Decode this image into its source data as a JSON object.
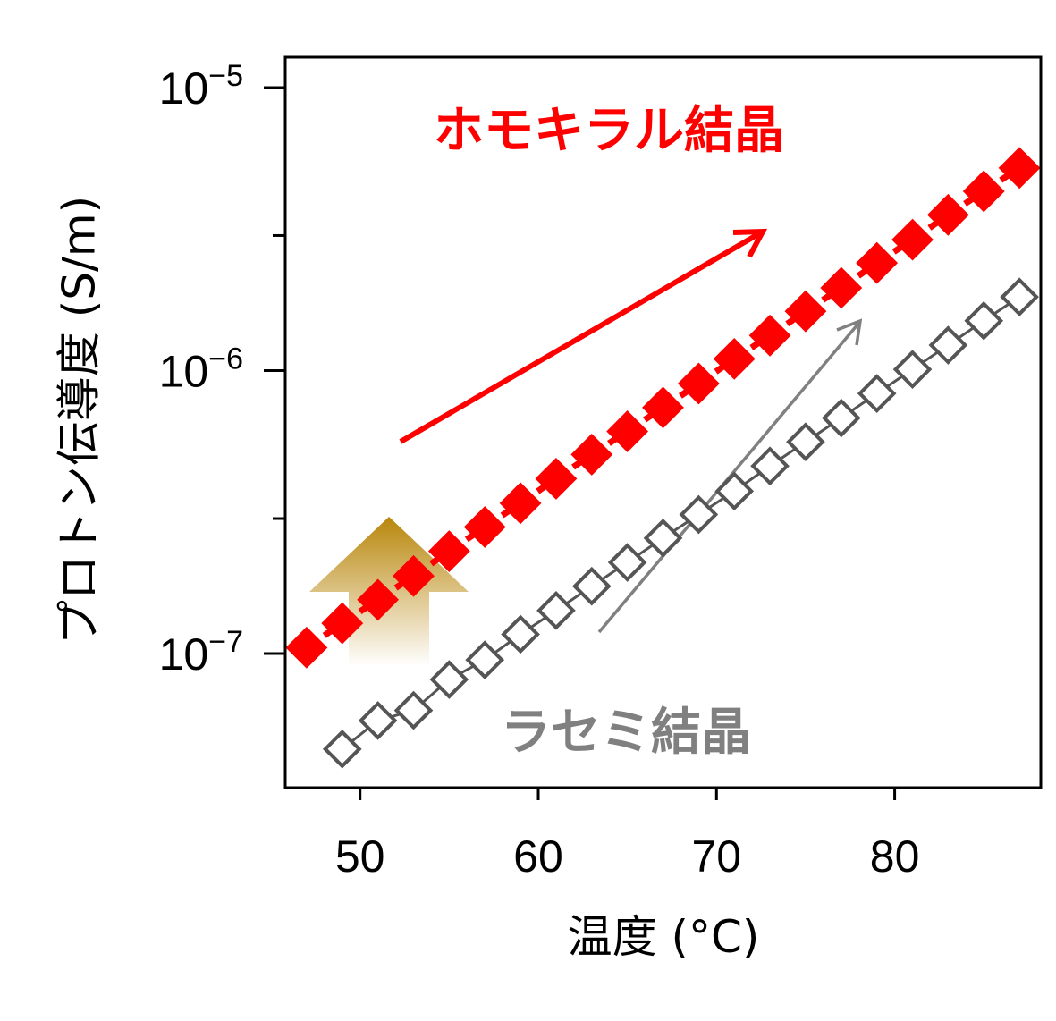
{
  "chart_data": {
    "type": "line",
    "xlabel": "温度 (°C)",
    "ylabel": "プロトン伝導度 (S/m)",
    "xlim": [
      45.8,
      88.2
    ],
    "ylim": [
      3.36e-08,
      1.28e-05
    ],
    "y_scale": "log",
    "x_ticks": [
      50,
      60,
      70,
      80
    ],
    "x_tick_labels": [
      "50",
      "60",
      "70",
      "80"
    ],
    "y_ticks": [
      1e-07,
      1e-06,
      1e-05
    ],
    "y_tick_labels": [
      {
        "base": "10",
        "exp": "−7"
      },
      {
        "base": "10",
        "exp": "−6"
      },
      {
        "base": "10",
        "exp": "−5"
      }
    ],
    "y_minor_ticks": [
      3e-07,
      3e-06
    ],
    "grid": false,
    "series": [
      {
        "name": "ホモキラル結晶",
        "color": "#ff0000",
        "marker": "filled-diamond",
        "line": "dashed",
        "x": [
          47,
          49,
          51,
          53,
          55,
          57,
          59,
          61,
          63,
          65,
          67,
          69,
          71,
          73,
          75,
          77,
          79,
          81,
          83,
          85,
          87
        ],
        "y": [
          1.05e-07,
          1.28e-07,
          1.55e-07,
          1.88e-07,
          2.3e-07,
          2.8e-07,
          3.4e-07,
          4.15e-07,
          5.05e-07,
          6.1e-07,
          7.4e-07,
          9e-07,
          1.1e-06,
          1.33e-06,
          1.62e-06,
          1.96e-06,
          2.4e-06,
          2.9e-06,
          3.55e-06,
          4.3e-06,
          5.2e-06
        ]
      },
      {
        "name": "ラセミ結晶",
        "color": "#555555",
        "marker": "open-diamond",
        "line": "solid",
        "x": [
          49,
          51,
          53,
          55,
          57,
          59,
          61,
          63,
          65,
          67,
          69,
          71,
          73,
          75,
          77,
          79,
          81,
          83,
          85,
          87
        ],
        "y": [
          4.6e-08,
          5.8e-08,
          6.3e-08,
          8.1e-08,
          9.5e-08,
          1.17e-07,
          1.42e-07,
          1.73e-07,
          2.1e-07,
          2.56e-07,
          3.1e-07,
          3.75e-07,
          4.6e-07,
          5.6e-07,
          6.8e-07,
          8.3e-07,
          1.01e-06,
          1.23e-06,
          1.5e-06,
          1.82e-06
        ]
      }
    ],
    "annotations": [
      {
        "text": "ホモキラル結晶",
        "color": "#ff0000"
      },
      {
        "text": "ラセミ結晶",
        "color": "#808080"
      }
    ],
    "arrow_colors": {
      "homochiral_trend": "#ff0000",
      "racemic_trend": "#808080",
      "enhancement_top": "#b8860b",
      "enhancement_bottom": "#ffffff"
    }
  }
}
